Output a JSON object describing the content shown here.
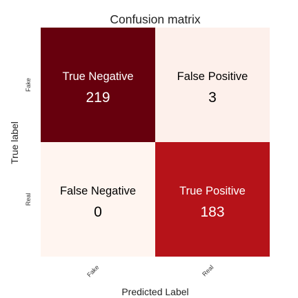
{
  "chart_data": {
    "type": "heatmap",
    "title": "Confusion matrix",
    "xlabel": "Predicted Label",
    "ylabel": "True label",
    "x_categories": [
      "Fake",
      "Real"
    ],
    "y_categories": [
      "Fake",
      "Real"
    ],
    "cells": [
      [
        {
          "label": "True Negative",
          "value": 219
        },
        {
          "label": "False Positive",
          "value": 3
        }
      ],
      [
        {
          "label": "False Negative",
          "value": 0
        },
        {
          "label": "True Positive",
          "value": 183
        }
      ]
    ],
    "colormap": "Reds",
    "colors": {
      "cell_0_0": "#67000d",
      "cell_0_1": "#fdf0eb",
      "cell_1_0": "#fff5f0",
      "cell_1_1": "#b61319",
      "text_on_dark": "#ffffff",
      "text_on_light": "#000000"
    }
  }
}
